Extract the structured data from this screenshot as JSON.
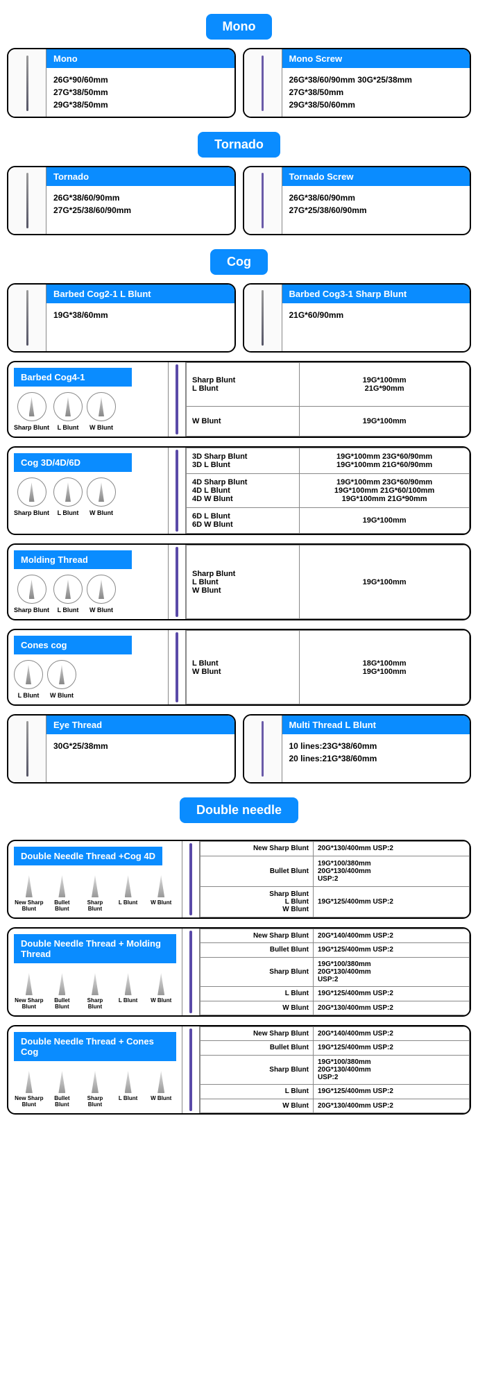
{
  "colors": {
    "accent": "#0a8cff",
    "thread": "#5a4aa8"
  },
  "sections": {
    "mono": "Mono",
    "tornado": "Tornado",
    "cog": "Cog",
    "double": "Double needle"
  },
  "mono": {
    "a": {
      "title": "Mono",
      "specs": "26G*90/60mm\n27G*38/50mm\n29G*38/50mm"
    },
    "b": {
      "title": "Mono Screw",
      "specs": "26G*38/60/90mm 30G*25/38mm\n27G*38/50mm\n29G*38/50/60mm"
    }
  },
  "tornado": {
    "a": {
      "title": "Tornado",
      "specs": "26G*38/60/90mm\n27G*25/38/60/90mm"
    },
    "b": {
      "title": "Tornado Screw",
      "specs": "26G*38/60/90mm\n27G*25/38/60/90mm"
    }
  },
  "cog": {
    "barbed21": {
      "title": "Barbed Cog2-1 L Blunt",
      "spec": "19G*38/60mm"
    },
    "barbed31": {
      "title": "Barbed Cog3-1 Sharp Blunt",
      "spec": "21G*60/90mm"
    },
    "cog41": {
      "title": "Barbed Cog4-1",
      "tips": [
        "Sharp Blunt",
        "L Blunt",
        "W Blunt"
      ],
      "rows": [
        [
          "Sharp Blunt\nL Blunt",
          "19G*100mm\n21G*90mm"
        ],
        [
          "W Blunt",
          "19G*100mm"
        ]
      ]
    },
    "cog3d": {
      "title": "Cog 3D/4D/6D",
      "tips": [
        "Sharp Blunt",
        "L Blunt",
        "W Blunt"
      ],
      "rows": [
        [
          "3D Sharp Blunt\n3D L Blunt",
          "19G*100mm 23G*60/90mm\n19G*100mm 21G*60/90mm"
        ],
        [
          "4D Sharp Blunt\n4D L Blunt\n4D W Blunt",
          "19G*100mm 23G*60/90mm\n19G*100mm 21G*60/100mm\n19G*100mm 21G*90mm"
        ],
        [
          "6D L Blunt\n6D W Blunt",
          "19G*100mm"
        ]
      ]
    },
    "molding": {
      "title": "Molding Thread",
      "tips": [
        "Sharp Blunt",
        "L Blunt",
        "W Blunt"
      ],
      "rows": [
        [
          "Sharp Blunt\nL Blunt\nW Blunt",
          "19G*100mm"
        ]
      ]
    },
    "cones": {
      "title": "Cones cog",
      "tips": [
        "L Blunt",
        "W Blunt"
      ],
      "rows": [
        [
          "L Blunt\nW Blunt",
          "18G*100mm\n19G*100mm"
        ]
      ]
    },
    "eye": {
      "title": "Eye Thread",
      "spec": "30G*25/38mm"
    },
    "multi": {
      "title": "Multi Thread L Blunt",
      "spec": "10 lines:23G*38/60mm\n20 lines:21G*38/60mm"
    }
  },
  "double": {
    "tips5": [
      "New Sharp\nBlunt",
      "Bullet\nBlunt",
      "Sharp Blunt",
      "L Blunt",
      "W Blunt"
    ],
    "d1": {
      "title": "Double Needle Thread +Cog 4D",
      "rows": [
        [
          "New Sharp Blunt",
          "20G*130/400mm USP:2"
        ],
        [
          "Bullet Blunt",
          "19G*100/380mm\n20G*130/400mm\nUSP:2"
        ],
        [
          "Sharp Blunt\nL Blunt\nW Blunt",
          "19G*125/400mm USP:2"
        ]
      ]
    },
    "d2": {
      "title": "Double Needle Thread + Molding Thread",
      "rows": [
        [
          "New Sharp Blunt",
          "20G*140/400mm USP:2"
        ],
        [
          "Bullet Blunt",
          "19G*125/400mm USP:2"
        ],
        [
          "Sharp Blunt",
          "19G*100/380mm\n20G*130/400mm\nUSP:2"
        ],
        [
          "L Blunt",
          "19G*125/400mm USP:2"
        ],
        [
          "W Blunt",
          "20G*130/400mm USP:2"
        ]
      ]
    },
    "d3": {
      "title": "Double Needle Thread + Cones Cog",
      "rows": [
        [
          "New Sharp Blunt",
          "20G*140/400mm USP:2"
        ],
        [
          "Bullet Blunt",
          "19G*125/400mm USP:2"
        ],
        [
          "Sharp Blunt",
          "19G*100/380mm\n20G*130/400mm\nUSP:2"
        ],
        [
          "L Blunt",
          "19G*125/400mm USP:2"
        ],
        [
          "W Blunt",
          "20G*130/400mm USP:2"
        ]
      ]
    }
  }
}
